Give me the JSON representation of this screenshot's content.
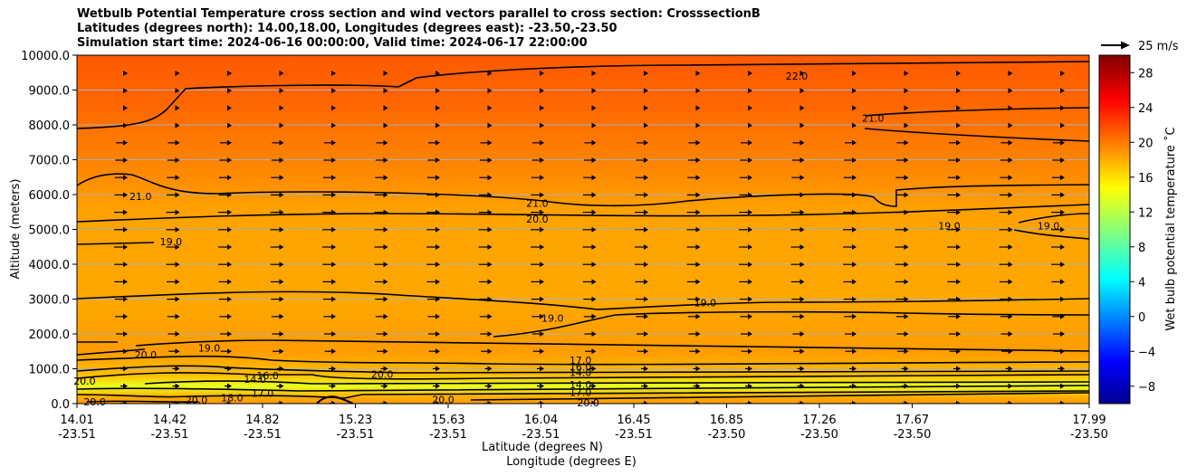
{
  "chart_data": {
    "type": "contour",
    "title_lines": [
      "Wetbulb Potential Temperature cross section and wind vectors parallel to cross section: CrosssectionB",
      "Latitudes (degrees north): 14.00,18.00, Longitudes (degrees east): -23.50,-23.50",
      "Simulation start time: 2024-06-16 00:00:00, Valid time: 2024-06-17 22:00:00"
    ],
    "ylabel": "Altitude (meters)",
    "xlabel_lines": [
      "Latitude (degrees N)",
      "Longitude (degrees E)"
    ],
    "ylim": [
      0,
      10000
    ],
    "y_ticks": [
      0,
      1000,
      2000,
      3000,
      4000,
      5000,
      6000,
      7000,
      8000,
      9000,
      10000
    ],
    "y_tick_labels": [
      "0.0",
      "1000.0",
      "2000.0",
      "3000.0",
      "4000.0",
      "5000.0",
      "6000.0",
      "7000.0",
      "8000.0",
      "9000.0",
      "10000.0"
    ],
    "x_ticks": [
      {
        "lat": "14.01",
        "lon": "-23.51"
      },
      {
        "lat": "14.42",
        "lon": "-23.51"
      },
      {
        "lat": "14.82",
        "lon": "-23.51"
      },
      {
        "lat": "15.23",
        "lon": "-23.51"
      },
      {
        "lat": "15.63",
        "lon": "-23.51"
      },
      {
        "lat": "16.04",
        "lon": "-23.51"
      },
      {
        "lat": "16.45",
        "lon": "-23.51"
      },
      {
        "lat": "16.85",
        "lon": "-23.50"
      },
      {
        "lat": "17.26",
        "lon": "-23.50"
      },
      {
        "lat": "17.67",
        "lon": "-23.50"
      },
      {
        "lat": "17.99",
        "lon": "-23.50"
      }
    ],
    "colorbar": {
      "label": "Wet bulb potential temperature $^\\circ$C",
      "label_display": "Wet bulb potential temperature ˚C",
      "range": [
        -10,
        30
      ],
      "ticks": [
        -8,
        -4,
        0,
        4,
        8,
        12,
        16,
        20,
        24,
        28
      ],
      "tick_labels": [
        "−8",
        "−4",
        "0",
        "4",
        "8",
        "12",
        "16",
        "20",
        "24",
        "28"
      ]
    },
    "quiver_key": {
      "label": "25 m/s",
      "value": 25
    },
    "contour_labels": [
      {
        "text": "22.0",
        "lat": 16.84,
        "alt": 9400
      },
      {
        "text": "21.0",
        "lat": 17.14,
        "alt": 8200
      },
      {
        "text": "21.0",
        "lat": 14.26,
        "alt": 5950
      },
      {
        "text": "21.0",
        "lat": 15.82,
        "alt": 5750
      },
      {
        "text": "20.0",
        "lat": 15.82,
        "alt": 5300
      },
      {
        "text": "19.0",
        "lat": 14.38,
        "alt": 4650
      },
      {
        "text": "19.0",
        "lat": 17.44,
        "alt": 5100
      },
      {
        "text": "19.0",
        "lat": 17.83,
        "alt": 5100
      },
      {
        "text": "19.0",
        "lat": 16.48,
        "alt": 2900
      },
      {
        "text": "19.0",
        "lat": 15.88,
        "alt": 2450
      },
      {
        "text": "20.0",
        "lat": 14.28,
        "alt": 1400
      },
      {
        "text": "19.0",
        "lat": 14.53,
        "alt": 1600
      },
      {
        "text": "17.0",
        "lat": 15.99,
        "alt": 1250
      },
      {
        "text": "16.0",
        "lat": 15.99,
        "alt": 1050
      },
      {
        "text": "14.0",
        "lat": 15.99,
        "alt": 900
      },
      {
        "text": "14.0",
        "lat": 15.99,
        "alt": 550
      },
      {
        "text": "17.0",
        "lat": 15.99,
        "alt": 320
      },
      {
        "text": "16.0",
        "lat": 14.76,
        "alt": 800
      },
      {
        "text": "14.0",
        "lat": 14.71,
        "alt": 700
      },
      {
        "text": "17.0",
        "lat": 14.74,
        "alt": 300
      },
      {
        "text": "18.0",
        "lat": 14.62,
        "alt": 170
      },
      {
        "text": "20.0",
        "lat": 14.48,
        "alt": 100
      },
      {
        "text": "20.0",
        "lat": 14.08,
        "alt": 50
      },
      {
        "text": "20.0",
        "lat": 14.04,
        "alt": 650
      },
      {
        "text": "20.0",
        "lat": 15.45,
        "alt": 120
      },
      {
        "text": "20.0",
        "lat": 15.21,
        "alt": 850
      },
      {
        "text": "20.0",
        "lat": 16.02,
        "alt": 20
      }
    ]
  }
}
